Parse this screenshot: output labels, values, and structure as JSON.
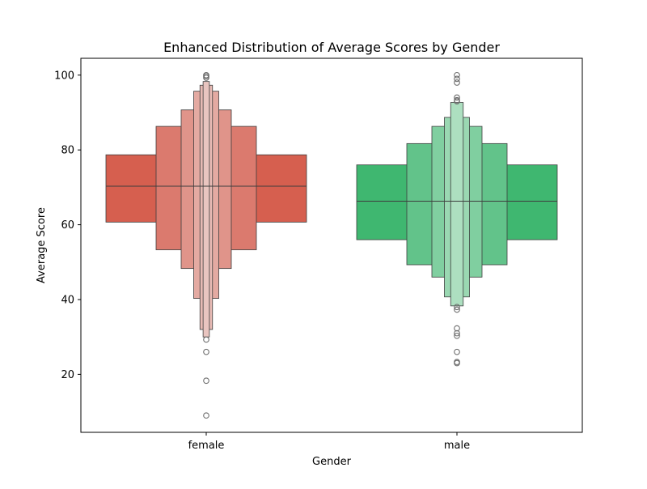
{
  "chart_data": {
    "type": "boxen",
    "title": "Enhanced Distribution of Average Scores by Gender",
    "xlabel": "Gender",
    "ylabel": "Average Score",
    "ylim": [
      4.5,
      104.5
    ],
    "yticks": [
      20,
      40,
      60,
      80,
      100
    ],
    "grid": false,
    "categories": [
      "female",
      "male"
    ],
    "series": [
      {
        "category": "female",
        "color": "#d65f4f",
        "median": 70.3,
        "levels": [
          {
            "low": 60.7,
            "high": 78.7,
            "color": "#d65f4f"
          },
          {
            "low": 53.3,
            "high": 86.3,
            "color": "#db7a6e"
          },
          {
            "low": 48.3,
            "high": 90.7,
            "color": "#e0948a"
          },
          {
            "low": 40.3,
            "high": 95.7,
            "color": "#e4aaa2"
          },
          {
            "low": 32.0,
            "high": 97.3,
            "color": "#e7bab4"
          },
          {
            "low": 30.0,
            "high": 98.3,
            "color": "#e9c5c0"
          }
        ],
        "outliers": [
          99.3,
          99.7,
          100.0,
          29.3,
          26.0,
          18.3,
          9.0
        ]
      },
      {
        "category": "male",
        "color": "#3fb770",
        "median": 66.3,
        "levels": [
          {
            "low": 56.0,
            "high": 76.0,
            "color": "#3fb770"
          },
          {
            "low": 49.3,
            "high": 81.7,
            "color": "#62c38a"
          },
          {
            "low": 46.0,
            "high": 86.3,
            "color": "#80cfa0"
          },
          {
            "low": 40.7,
            "high": 88.7,
            "color": "#9ad8b2"
          },
          {
            "low": 38.3,
            "high": 92.7,
            "color": "#addfc0"
          }
        ],
        "outliers": [
          100.0,
          99.0,
          98.0,
          94.0,
          93.3,
          93.0,
          38.0,
          37.3,
          32.3,
          31.0,
          30.3,
          26.0,
          23.3,
          23.0
        ]
      }
    ]
  }
}
